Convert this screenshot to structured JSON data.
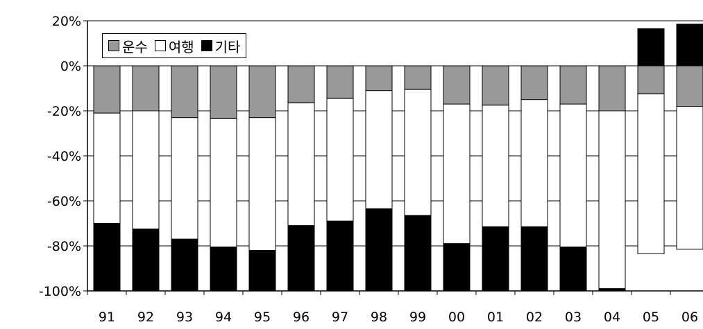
{
  "chart_data": {
    "type": "bar",
    "stacked": true,
    "categories": [
      "91",
      "92",
      "93",
      "94",
      "95",
      "96",
      "97",
      "98",
      "99",
      "00",
      "01",
      "02",
      "03",
      "04",
      "05",
      "06"
    ],
    "series": [
      {
        "name": "운수",
        "color": "#999999",
        "values": [
          -21,
          -20,
          -23,
          -23.5,
          -23,
          -16.5,
          -14.5,
          -11,
          -10.5,
          -17,
          -17.5,
          -15,
          -17,
          -20,
          -12.5,
          -18
        ]
      },
      {
        "name": "여행",
        "color": "#ffffff",
        "values": [
          -49,
          -52.5,
          -54,
          -57,
          -59,
          -54.5,
          -54.5,
          -52.5,
          -56,
          -62,
          -54,
          -56.5,
          -63.5,
          -79,
          -71,
          -63.5
        ]
      },
      {
        "name": "기타",
        "color": "#000000",
        "values": [
          -30,
          -27.5,
          -23,
          -19.5,
          -18,
          -29,
          -31,
          -36.5,
          -33.5,
          -21,
          -28.5,
          -28.5,
          -19.5,
          -1,
          16.5,
          18.5
        ]
      }
    ],
    "yticks": [
      "20%",
      "0%",
      "-20%",
      "-40%",
      "-60%",
      "-80%",
      "-100%"
    ],
    "ylim": [
      -100,
      20
    ],
    "grid": true,
    "legend": "top-left"
  }
}
